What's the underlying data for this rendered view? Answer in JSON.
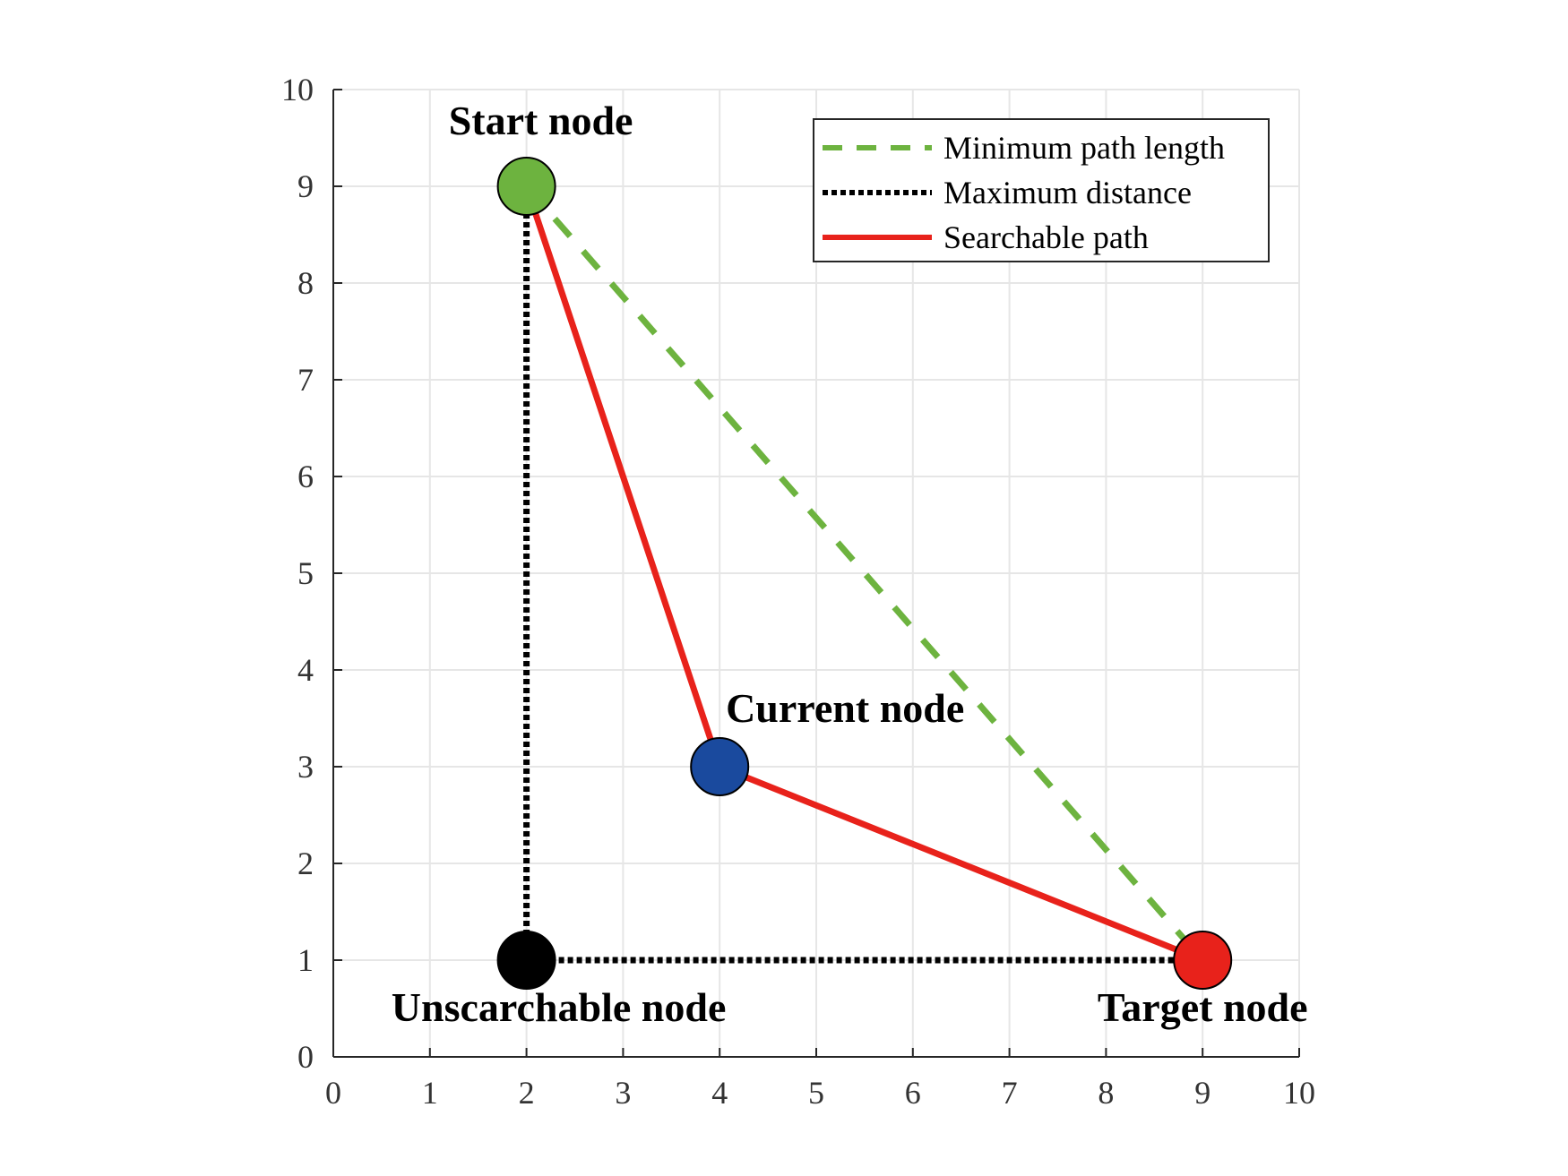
{
  "chart_data": {
    "type": "line",
    "title": "",
    "xlabel": "",
    "ylabel": "",
    "xlim": [
      0,
      10
    ],
    "ylim": [
      0,
      10
    ],
    "xticks": [
      "0",
      "1",
      "2",
      "3",
      "4",
      "5",
      "6",
      "7",
      "8",
      "9",
      "10"
    ],
    "yticks": [
      "0",
      "1",
      "2",
      "3",
      "4",
      "5",
      "6",
      "7",
      "8",
      "9",
      "10"
    ],
    "grid": true,
    "legend_position": "top-right",
    "series": [
      {
        "name": "Minimum path length",
        "style": "dashed",
        "color": "#6db33f",
        "points": [
          [
            2,
            9
          ],
          [
            9,
            1
          ]
        ]
      },
      {
        "name": "Maximum distance",
        "style": "dotted",
        "color": "#000000",
        "points": [
          [
            2,
            9
          ],
          [
            2,
            1
          ],
          [
            9,
            1
          ]
        ]
      },
      {
        "name": "Searchable path",
        "style": "solid",
        "color": "#e8221b",
        "points": [
          [
            2,
            9
          ],
          [
            4,
            3
          ],
          [
            9,
            1
          ]
        ]
      }
    ],
    "nodes": [
      {
        "label": "Start node",
        "x": 2,
        "y": 9,
        "color": "#6db33f"
      },
      {
        "label": "Current node",
        "x": 4,
        "y": 3,
        "color": "#1a4a9e"
      },
      {
        "label": "Unscarchable node",
        "x": 2,
        "y": 1,
        "color": "#000000"
      },
      {
        "label": "Target node",
        "x": 9,
        "y": 1,
        "color": "#e8221b"
      }
    ]
  }
}
